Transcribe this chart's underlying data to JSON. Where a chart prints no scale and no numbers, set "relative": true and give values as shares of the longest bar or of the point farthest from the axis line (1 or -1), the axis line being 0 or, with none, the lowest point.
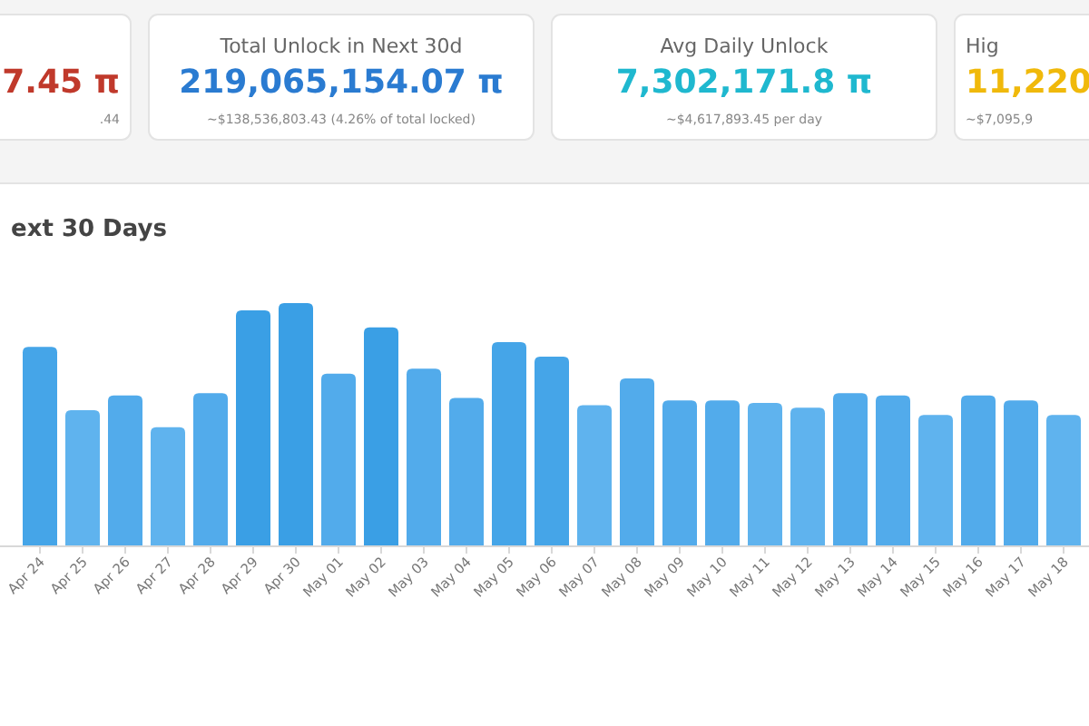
{
  "chart_data": [
    {
      "type": "other",
      "annotations": [
        "7.45 π",
        ".44"
      ],
      "color": "#c0392b"
    },
    {
      "type": "other",
      "title": "Total Unlock in Next 30d",
      "annotations": [
        "219,065,154.07 π",
        "~$138,536,803.43 (4.26% of total locked)"
      ],
      "color": "#2a7bd1"
    },
    {
      "type": "other",
      "title": "Avg Daily Unlock",
      "annotations": [
        "7,302,171.8 π",
        "~$4,617,893.45 per day"
      ],
      "color": "#1fb8cf"
    },
    {
      "type": "other",
      "title": "Hig",
      "annotations": [
        "11,220",
        "~$7,095,9"
      ],
      "color": "#f0b90b"
    },
    {
      "type": "bar",
      "title": "ext 30 Days",
      "relative": true,
      "categories": [
        "Apr 24",
        "Apr 25",
        "Apr 26",
        "Apr 27",
        "Apr 28",
        "Apr 29",
        "Apr 30",
        "May 01",
        "May 02",
        "May 03",
        "May 04",
        "May 05",
        "May 06",
        "May 07",
        "May 08",
        "May 09",
        "May 10",
        "May 11",
        "May 12",
        "May 13",
        "May 14",
        "May 15",
        "May 16",
        "May 17",
        "May 18"
      ],
      "values": [
        0.82,
        0.56,
        0.62,
        0.49,
        0.63,
        0.97,
        1,
        0.71,
        0.9,
        0.73,
        0.61,
        0.84,
        0.78,
        0.58,
        0.69,
        0.6,
        0.6,
        0.59,
        0.57,
        0.63,
        0.62,
        0.54,
        0.62,
        0.6,
        0.54
      ],
      "colors": [
        "#45a5e8",
        "#5fb3ee",
        "#52abeb",
        "#5fb3ee",
        "#52abeb",
        "#3a9fe5",
        "#3a9fe5",
        "#52abeb",
        "#3a9fe5",
        "#52abeb",
        "#52abeb",
        "#45a5e8",
        "#45a5e8",
        "#5fb3ee",
        "#52abeb",
        "#52abeb",
        "#52abeb",
        "#5fb3ee",
        "#5fb3ee",
        "#52abeb",
        "#52abeb",
        "#5fb3ee",
        "#52abeb",
        "#52abeb",
        "#5fb3ee"
      ]
    }
  ]
}
